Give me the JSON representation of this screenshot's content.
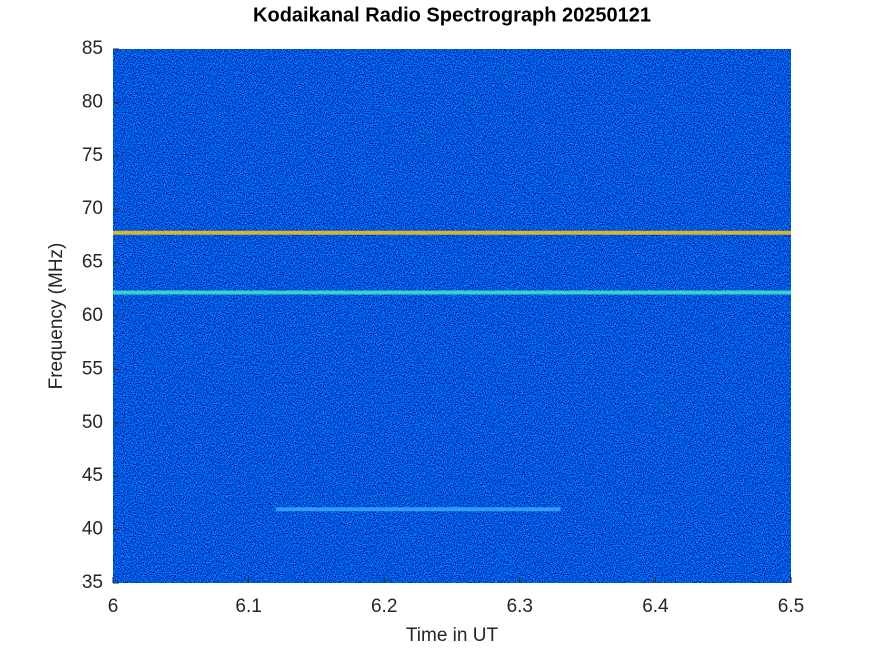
{
  "chart_data": {
    "type": "spectrogram",
    "title": "Kodaikanal Radio Spectrograph  20250121",
    "xlabel": "Time in UT",
    "ylabel": "Frequency (MHz)",
    "xlim": [
      6,
      6.5
    ],
    "xticks": [
      6,
      6.1,
      6.2,
      6.3,
      6.4,
      6.5
    ],
    "ylim": [
      35,
      85
    ],
    "yticks": [
      35,
      40,
      45,
      50,
      55,
      60,
      65,
      70,
      75,
      80,
      85
    ],
    "bands": [
      {
        "y": 67.8,
        "x": [
          6,
          6.5
        ],
        "color": "#f0c020"
      },
      {
        "y": 62.2,
        "x": [
          6,
          6.5
        ],
        "color": "#40e0d0"
      },
      {
        "y": 41.9,
        "x": [
          6.12,
          6.33
        ],
        "color": "#3aa0ff"
      }
    ]
  }
}
